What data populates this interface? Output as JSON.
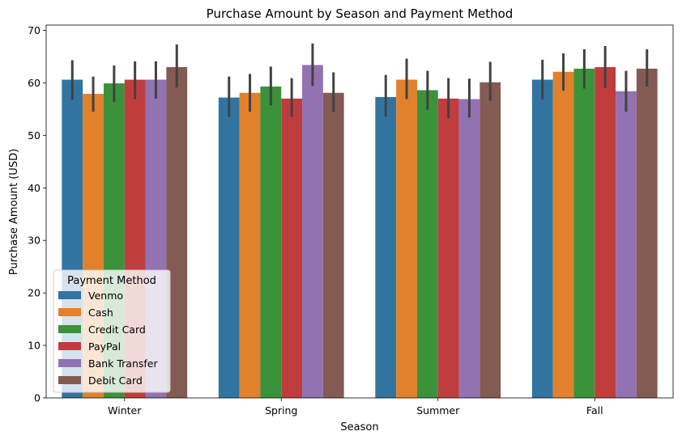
{
  "chart_data": {
    "type": "bar",
    "title": "Purchase Amount by Season and Payment Method",
    "xlabel": "Season",
    "ylabel": "Purchase Amount (USD)",
    "categories": [
      "Winter",
      "Spring",
      "Summer",
      "Fall"
    ],
    "ylim": [
      0,
      71
    ],
    "yticks": [
      "0",
      "10",
      "20",
      "30",
      "40",
      "50",
      "60",
      "70"
    ],
    "grid": false,
    "legend": {
      "title": "Payment Method",
      "position": "lower-left"
    },
    "series": [
      {
        "name": "Venmo",
        "color": "#3274a1",
        "values": [
          60.6,
          57.2,
          57.3,
          60.6
        ],
        "ci_low": [
          56.8,
          53.5,
          53.6,
          56.8
        ],
        "ci_high": [
          64.3,
          61.2,
          61.5,
          64.4
        ]
      },
      {
        "name": "Cash",
        "color": "#e1812c",
        "values": [
          57.9,
          58.1,
          60.6,
          62.1
        ],
        "ci_low": [
          54.5,
          54.5,
          56.9,
          58.5
        ],
        "ci_high": [
          61.2,
          61.7,
          64.6,
          65.6
        ]
      },
      {
        "name": "Credit Card",
        "color": "#3a923a",
        "values": [
          59.9,
          59.3,
          58.6,
          62.7
        ],
        "ci_low": [
          56.3,
          55.7,
          54.9,
          58.9
        ],
        "ci_high": [
          63.3,
          63.1,
          62.3,
          66.4
        ]
      },
      {
        "name": "PayPal",
        "color": "#c03d3e",
        "values": [
          60.6,
          57.0,
          57.0,
          63.0
        ],
        "ci_low": [
          56.9,
          53.5,
          53.2,
          59.0
        ],
        "ci_high": [
          64.1,
          60.9,
          60.9,
          67.0
        ]
      },
      {
        "name": "Bank Transfer",
        "color": "#9372b2",
        "values": [
          60.6,
          63.4,
          56.9,
          58.4
        ],
        "ci_low": [
          57.0,
          59.4,
          53.4,
          54.5
        ],
        "ci_high": [
          64.1,
          67.5,
          60.8,
          62.3
        ]
      },
      {
        "name": "Debit Card",
        "color": "#845b53",
        "values": [
          63.0,
          58.1,
          60.1,
          62.7
        ],
        "ci_low": [
          59.1,
          54.4,
          56.6,
          59.3
        ],
        "ci_high": [
          67.3,
          62.0,
          64.0,
          66.4
        ]
      }
    ]
  }
}
